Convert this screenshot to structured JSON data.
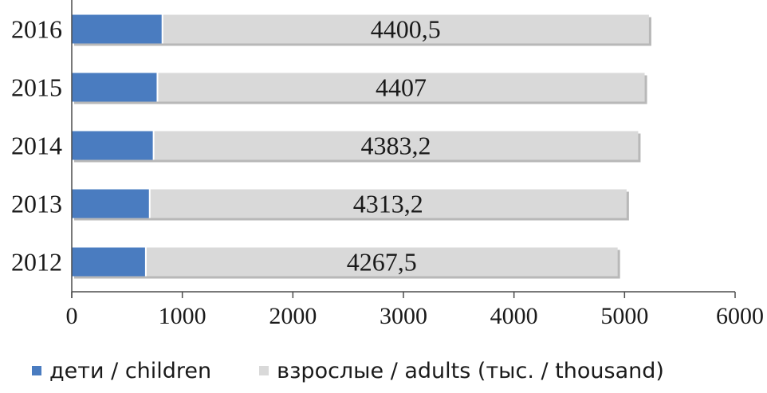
{
  "chart_data": {
    "type": "bar",
    "orientation": "horizontal",
    "stacked": true,
    "categories": [
      "2016",
      "2015",
      "2014",
      "2013",
      "2012"
    ],
    "series": [
      {
        "name": "дети / children",
        "color": "#4a7cc0",
        "values": [
          820,
          775,
          740,
          705,
          670
        ],
        "data_labels": [
          "",
          "",
          "",
          "",
          ""
        ]
      },
      {
        "name": "взрослые / adults (тыс. / thousand)",
        "color": "#d9d9d9",
        "values": [
          4400.5,
          4407,
          4383.2,
          4313.2,
          4267.5
        ],
        "data_labels": [
          "4400,5",
          "4407",
          "4383,2",
          "4313,2",
          "4267,5"
        ]
      }
    ],
    "xlim": [
      0,
      6000
    ],
    "x_ticks": [
      0,
      1000,
      2000,
      3000,
      4000,
      5000,
      6000
    ],
    "x_tick_labels": [
      "0",
      "1000",
      "2000",
      "3000",
      "4000",
      "5000",
      "6000"
    ],
    "title": "",
    "xlabel": "",
    "ylabel": "",
    "grid": false,
    "legend_position": "bottom"
  }
}
